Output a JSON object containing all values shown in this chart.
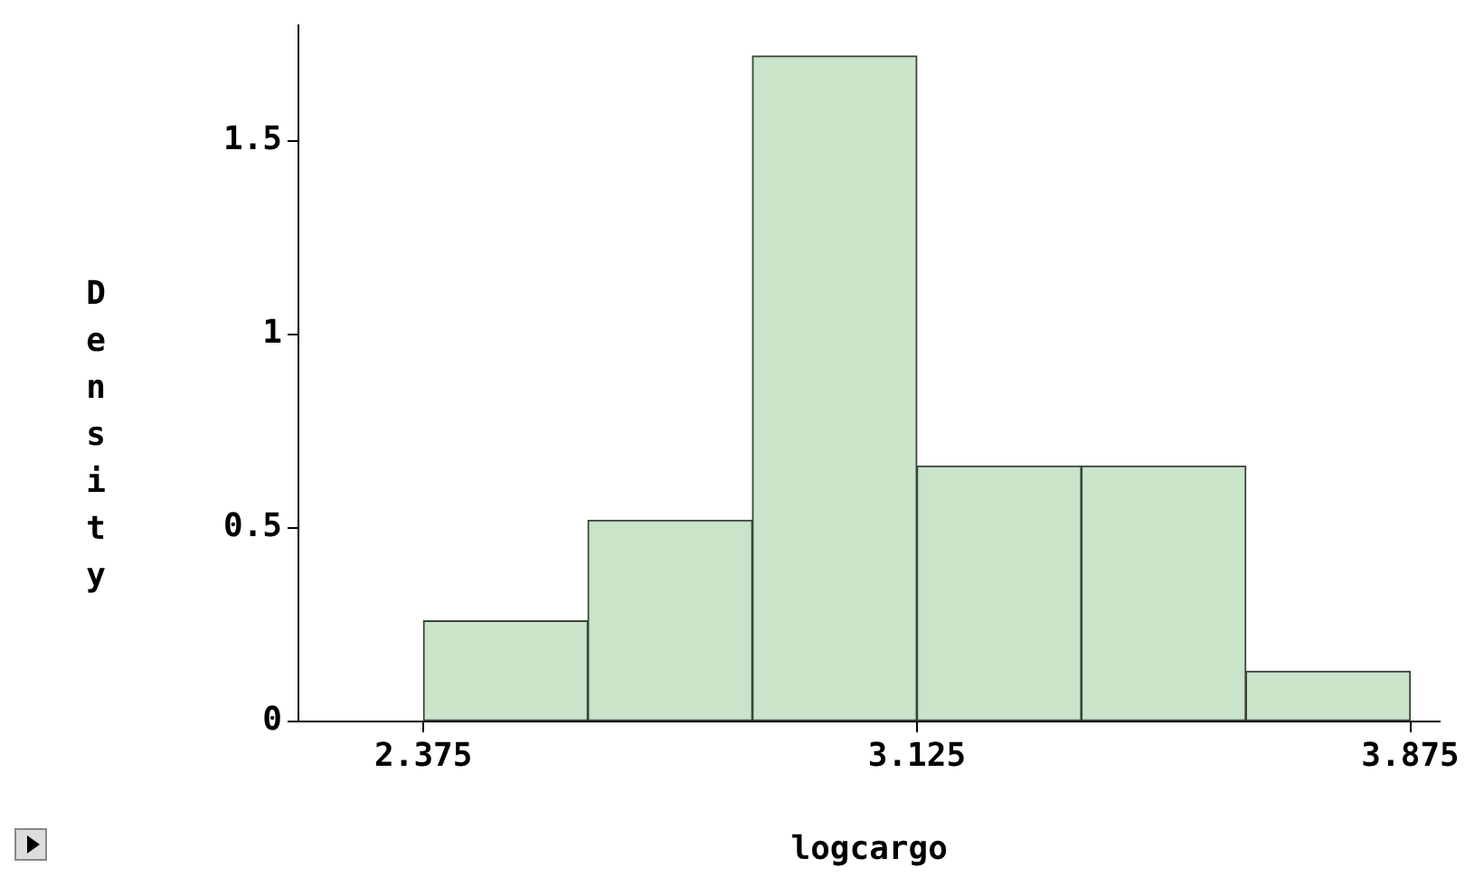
{
  "chart_data": {
    "type": "histogram",
    "xlabel": "logcargo",
    "ylabel": "Density",
    "bins": [
      2.375,
      2.625,
      2.875,
      3.125,
      3.375,
      3.625,
      3.875
    ],
    "values": [
      0.26,
      0.52,
      1.72,
      0.66,
      0.66,
      0.13
    ],
    "color": "#c9e4c9",
    "xlim": [
      2.185,
      3.92
    ],
    "xticks": [
      2.375,
      3.125,
      3.875
    ],
    "ylim": [
      0,
      1.8
    ],
    "yticks": [
      0,
      0.5,
      1,
      1.5
    ],
    "grid": false,
    "legend": false
  }
}
